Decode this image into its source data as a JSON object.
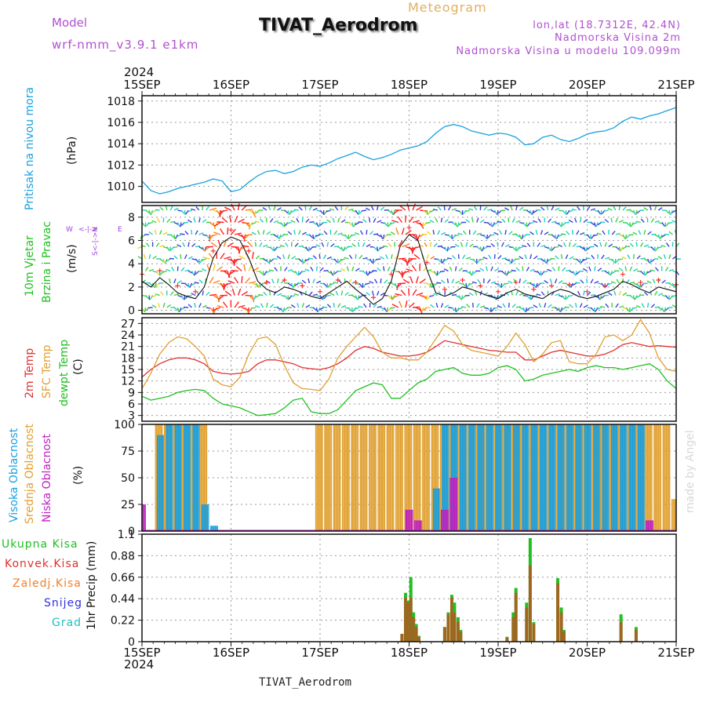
{
  "header": {
    "model_label": "Model",
    "model_name": "wrf-nmm_v3.9.1  e1km",
    "title": "TIVAT_Aerodrom",
    "subtitle": "Meteogram",
    "coords": "lon,lat (18.7312E, 42.4N)",
    "elev_station": "Nadmorska Visina 2m",
    "elev_model": "Nadmorska Visina u modelu 109.099m",
    "footer_station": "TIVAT_Aerodrom",
    "watermark": "made by Angel"
  },
  "axis": {
    "year": "2024",
    "x_ticks": [
      "15SEP",
      "16SEP",
      "17SEP",
      "18SEP",
      "19SEP",
      "20SEP",
      "21SEP"
    ]
  },
  "colors": {
    "pressure": "#1aa0e0",
    "temp2m": "#e03030",
    "sfc_temp": "#e0a030",
    "dewpoint": "#20c020",
    "high_cloud": "#1aa0e0",
    "mid_cloud": "#e0a030",
    "low_cloud": "#c020c0",
    "total_precip": "#20c020",
    "conv_precip": "#e03030",
    "frozen_precip": "#f08030",
    "snow": "#3030e0",
    "graupel": "#20c0c0",
    "wind_label": "#20c020",
    "direction_label": "#a040e0"
  },
  "chart_data": [
    {
      "type": "line",
      "name_label": "Pritisak na nivou mora",
      "ylabel": "(hPa)",
      "ylim": [
        1008.5,
        1018.5
      ],
      "yticks": [
        1010,
        1012,
        1014,
        1016,
        1018
      ],
      "grid": true,
      "x": [
        15.0,
        15.1,
        15.2,
        15.3,
        15.4,
        15.5,
        15.6,
        15.7,
        15.8,
        15.9,
        16.0,
        16.1,
        16.2,
        16.3,
        16.4,
        16.5,
        16.6,
        16.7,
        16.8,
        16.9,
        17.0,
        17.1,
        17.2,
        17.3,
        17.4,
        17.5,
        17.6,
        17.7,
        17.8,
        17.9,
        18.0,
        18.1,
        18.2,
        18.3,
        18.4,
        18.5,
        18.6,
        18.7,
        18.8,
        18.9,
        19.0,
        19.1,
        19.2,
        19.3,
        19.4,
        19.5,
        19.6,
        19.7,
        19.8,
        19.9,
        20.0,
        20.1,
        20.2,
        20.3,
        20.4,
        20.5,
        20.6,
        20.7,
        20.8,
        20.9,
        21.0
      ],
      "series": [
        {
          "values": [
            1010.5,
            1009.6,
            1009.3,
            1009.5,
            1009.8,
            1010.0,
            1010.2,
            1010.4,
            1010.7,
            1010.5,
            1009.5,
            1009.7,
            1010.4,
            1011.0,
            1011.4,
            1011.5,
            1011.2,
            1011.4,
            1011.8,
            1012.0,
            1011.9,
            1012.2,
            1012.6,
            1012.9,
            1013.2,
            1012.8,
            1012.5,
            1012.7,
            1013.0,
            1013.4,
            1013.6,
            1013.8,
            1014.2,
            1015.0,
            1015.6,
            1015.8,
            1015.6,
            1015.2,
            1015.0,
            1014.8,
            1015.0,
            1014.9,
            1014.6,
            1013.9,
            1014.0,
            1014.6,
            1014.8,
            1014.4,
            1014.2,
            1014.5,
            1014.9,
            1015.1,
            1015.2,
            1015.5,
            1016.1,
            1016.5,
            1016.3,
            1016.6,
            1016.8,
            1017.1,
            1017.4
          ]
        }
      ]
    },
    {
      "type": "line",
      "name_label": "10m Vjetar",
      "name_label2": "Brzina i Pravac",
      "ylabel": "(m/s)",
      "direction_labels": [
        "W",
        "N",
        "S",
        "E"
      ],
      "ylim": [
        -0.3,
        9
      ],
      "yticks": [
        0,
        2,
        4,
        6,
        8
      ],
      "grid": true,
      "x": [
        15.0,
        15.1,
        15.2,
        15.3,
        15.4,
        15.5,
        15.6,
        15.7,
        15.8,
        15.9,
        16.0,
        16.1,
        16.2,
        16.3,
        16.4,
        16.5,
        16.6,
        16.7,
        16.8,
        16.9,
        17.0,
        17.1,
        17.2,
        17.3,
        17.4,
        17.5,
        17.6,
        17.7,
        17.8,
        17.9,
        18.0,
        18.1,
        18.2,
        18.3,
        18.4,
        18.5,
        18.6,
        18.7,
        18.8,
        18.9,
        19.0,
        19.1,
        19.2,
        19.3,
        19.4,
        19.5,
        19.6,
        19.7,
        19.8,
        19.9,
        20.0,
        20.1,
        20.2,
        20.3,
        20.4,
        20.5,
        20.6,
        20.7,
        20.8,
        20.9,
        21.0
      ],
      "series": [
        {
          "values": [
            2.5,
            2.0,
            2.8,
            2.2,
            1.5,
            1.2,
            1.0,
            2.0,
            4.5,
            5.8,
            6.3,
            6.0,
            4.5,
            2.5,
            1.8,
            1.5,
            2.0,
            1.8,
            1.5,
            1.2,
            1.0,
            1.5,
            2.0,
            2.5,
            1.8,
            1.2,
            0.5,
            1.0,
            2.5,
            5.5,
            6.5,
            6.0,
            3.5,
            1.5,
            1.2,
            1.5,
            2.0,
            1.8,
            1.5,
            1.2,
            1.0,
            1.5,
            1.8,
            1.4,
            1.2,
            1.0,
            1.5,
            1.8,
            1.6,
            1.2,
            1.0,
            1.2,
            1.5,
            1.8,
            2.5,
            2.2,
            1.8,
            1.5,
            2.0,
            1.8,
            1.6
          ]
        }
      ]
    },
    {
      "type": "line",
      "name_label": "2m Temp",
      "name_label2": "SFC Temp",
      "name_label3": "dewpt Temp",
      "ylabel": "(C)",
      "ylim": [
        1.5,
        28.5
      ],
      "yticks": [
        3,
        6,
        9,
        12,
        15,
        18,
        21,
        24,
        27
      ],
      "grid": true,
      "x": [
        15.0,
        15.1,
        15.2,
        15.3,
        15.4,
        15.5,
        15.6,
        15.7,
        15.8,
        15.9,
        16.0,
        16.1,
        16.2,
        16.3,
        16.4,
        16.5,
        16.6,
        16.7,
        16.8,
        16.9,
        17.0,
        17.1,
        17.2,
        17.3,
        17.4,
        17.5,
        17.6,
        17.7,
        17.8,
        17.9,
        18.0,
        18.1,
        18.2,
        18.3,
        18.4,
        18.5,
        18.6,
        18.7,
        18.8,
        18.9,
        19.0,
        19.1,
        19.2,
        19.3,
        19.4,
        19.5,
        19.6,
        19.7,
        19.8,
        19.9,
        20.0,
        20.1,
        20.2,
        20.3,
        20.4,
        20.5,
        20.6,
        20.7,
        20.8,
        20.9,
        21.0
      ],
      "series": [
        {
          "values": [
            13,
            15,
            16.5,
            17.5,
            18,
            18,
            17.5,
            16.5,
            14.5,
            14,
            13.8,
            14,
            14.5,
            16.5,
            17.5,
            17.5,
            17,
            16.5,
            15.5,
            15.2,
            15,
            15.5,
            16.5,
            18,
            20,
            21,
            20.5,
            19.5,
            19,
            18.5,
            18.5,
            18.8,
            19.5,
            21,
            22.5,
            22,
            21.5,
            21,
            20.5,
            20,
            19.8,
            19.5,
            19.5,
            17.5,
            17.5,
            18.5,
            19.5,
            20,
            19.5,
            19.0,
            18.5,
            18.5,
            19,
            20,
            21.5,
            22,
            21.5,
            21,
            21.2,
            21,
            20.8
          ]
        },
        {
          "values": [
            10,
            14,
            19,
            22,
            23.5,
            23,
            21,
            18.5,
            12.5,
            11,
            10.5,
            13,
            19,
            23,
            23.5,
            21.5,
            16,
            11.5,
            10,
            9.8,
            9.5,
            12.5,
            18,
            21,
            23.5,
            26,
            23.5,
            19.5,
            18,
            18,
            17.5,
            17.5,
            19.5,
            23,
            26.5,
            25,
            21.5,
            20,
            19.5,
            19,
            18.5,
            21,
            24.5,
            21.5,
            17,
            19,
            22,
            22.5,
            17,
            16.5,
            16.5,
            19,
            23.5,
            24,
            22.5,
            24,
            28,
            24.5,
            18,
            15,
            14.5
          ]
        },
        {
          "values": [
            8,
            7,
            7.5,
            8,
            9,
            9.5,
            9.8,
            9.5,
            7.5,
            6,
            5.5,
            5,
            4,
            3,
            3.2,
            3.5,
            5,
            7,
            7.5,
            4,
            3.5,
            3.5,
            4.5,
            7,
            9.5,
            10.5,
            11.5,
            11,
            7.5,
            7.5,
            9.5,
            11.5,
            12.5,
            14.5,
            15,
            15.5,
            14,
            13.5,
            13.5,
            14,
            15.5,
            16,
            15,
            12,
            12.5,
            13.5,
            14,
            14.5,
            15,
            14.5,
            15.5,
            16,
            15.5,
            15.5,
            15,
            15.5,
            16,
            16.5,
            15,
            12,
            10
          ]
        }
      ]
    },
    {
      "type": "bar",
      "name_label": "Visoka Oblacnost",
      "name_label2": "Srednja Oblacnost",
      "name_label3": "Niska Oblacnost",
      "ylabel": "(%)",
      "ylim": [
        0,
        100
      ],
      "yticks": [
        0,
        25,
        50,
        75,
        100
      ],
      "grid": true,
      "x": [
        15.0,
        15.1,
        15.2,
        15.3,
        15.4,
        15.5,
        15.6,
        15.7,
        15.8,
        15.9,
        16.0,
        16.1,
        16.2,
        16.3,
        16.4,
        16.5,
        16.6,
        16.7,
        16.8,
        16.9,
        17.0,
        17.1,
        17.2,
        17.3,
        17.4,
        17.5,
        17.6,
        17.7,
        17.8,
        17.9,
        18.0,
        18.1,
        18.2,
        18.3,
        18.4,
        18.5,
        18.6,
        18.7,
        18.8,
        18.9,
        19.0,
        19.1,
        19.2,
        19.3,
        19.4,
        19.5,
        19.6,
        19.7,
        19.8,
        19.9,
        20.0,
        20.1,
        20.2,
        20.3,
        20.4,
        20.5,
        20.6,
        20.7,
        20.8,
        20.9,
        21.0
      ],
      "series": [
        {
          "values": [
            0,
            0,
            90,
            100,
            100,
            100,
            100,
            25,
            5,
            0,
            0,
            0,
            0,
            0,
            0,
            0,
            0,
            0,
            0,
            0,
            0,
            0,
            0,
            0,
            0,
            0,
            0,
            0,
            0,
            0,
            0,
            0,
            0,
            40,
            100,
            100,
            100,
            100,
            100,
            100,
            100,
            100,
            100,
            100,
            100,
            100,
            100,
            100,
            100,
            100,
            100,
            100,
            100,
            100,
            100,
            100,
            100,
            0,
            0,
            0,
            0
          ]
        },
        {
          "values": [
            0,
            0,
            100,
            100,
            100,
            100,
            100,
            100,
            0,
            0,
            0,
            0,
            0,
            0,
            0,
            0,
            0,
            0,
            0,
            0,
            100,
            100,
            100,
            100,
            100,
            100,
            100,
            100,
            100,
            100,
            100,
            100,
            100,
            100,
            100,
            100,
            100,
            100,
            100,
            100,
            100,
            100,
            100,
            100,
            100,
            100,
            100,
            100,
            100,
            100,
            100,
            100,
            100,
            100,
            100,
            100,
            100,
            100,
            100,
            100,
            30
          ]
        },
        {
          "values": [
            25,
            0,
            0,
            0,
            0,
            0,
            0,
            0,
            0,
            0,
            0,
            0,
            0,
            0,
            0,
            0,
            0,
            0,
            0,
            0,
            0,
            0,
            0,
            0,
            0,
            0,
            0,
            0,
            0,
            0,
            20,
            10,
            0,
            0,
            20,
            50,
            0,
            0,
            0,
            0,
            0,
            0,
            0,
            0,
            0,
            0,
            0,
            0,
            0,
            0,
            0,
            0,
            0,
            0,
            0,
            0,
            0,
            10,
            0,
            0,
            0
          ]
        }
      ]
    },
    {
      "type": "bar",
      "name_label": "Ukupna Kisa",
      "name_label2": "Konvek.Kisa",
      "name_label3": "Zaledj.Kisa",
      "name_label4": "Snijeg",
      "name_label5": "Grad",
      "ylabel": "1hr Precip (mm)",
      "ylim": [
        0,
        1.1
      ],
      "yticks": [
        0,
        0.22,
        0.44,
        0.66,
        0.88,
        1.1
      ],
      "grid": true,
      "bars": [
        {
          "x": 17.92,
          "total": 0.08,
          "conv": 0.08
        },
        {
          "x": 17.96,
          "total": 0.5,
          "conv": 0.45
        },
        {
          "x": 17.99,
          "total": 0.42,
          "conv": 0.4
        },
        {
          "x": 18.02,
          "total": 0.66,
          "conv": 0.45
        },
        {
          "x": 18.05,
          "total": 0.3,
          "conv": 0.25
        },
        {
          "x": 18.08,
          "total": 0.18,
          "conv": 0.15
        },
        {
          "x": 18.11,
          "total": 0.06,
          "conv": 0.05
        },
        {
          "x": 18.4,
          "total": 0.15,
          "conv": 0.15
        },
        {
          "x": 18.44,
          "total": 0.3,
          "conv": 0.28
        },
        {
          "x": 18.48,
          "total": 0.48,
          "conv": 0.45
        },
        {
          "x": 18.51,
          "total": 0.4,
          "conv": 0.3
        },
        {
          "x": 18.55,
          "total": 0.25,
          "conv": 0.2
        },
        {
          "x": 18.58,
          "total": 0.12,
          "conv": 0.1
        },
        {
          "x": 19.1,
          "total": 0.05,
          "conv": 0.04
        },
        {
          "x": 19.17,
          "total": 0.3,
          "conv": 0.25
        },
        {
          "x": 19.2,
          "total": 0.55,
          "conv": 0.5
        },
        {
          "x": 19.32,
          "total": 0.4,
          "conv": 0.35
        },
        {
          "x": 19.36,
          "total": 1.06,
          "conv": 0.78
        },
        {
          "x": 19.4,
          "total": 0.2,
          "conv": 0.18
        },
        {
          "x": 19.67,
          "total": 0.65,
          "conv": 0.6
        },
        {
          "x": 19.71,
          "total": 0.35,
          "conv": 0.3
        },
        {
          "x": 19.74,
          "total": 0.12,
          "conv": 0.1
        },
        {
          "x": 20.38,
          "total": 0.28,
          "conv": 0.2
        },
        {
          "x": 20.55,
          "total": 0.15,
          "conv": 0.12
        }
      ]
    }
  ]
}
